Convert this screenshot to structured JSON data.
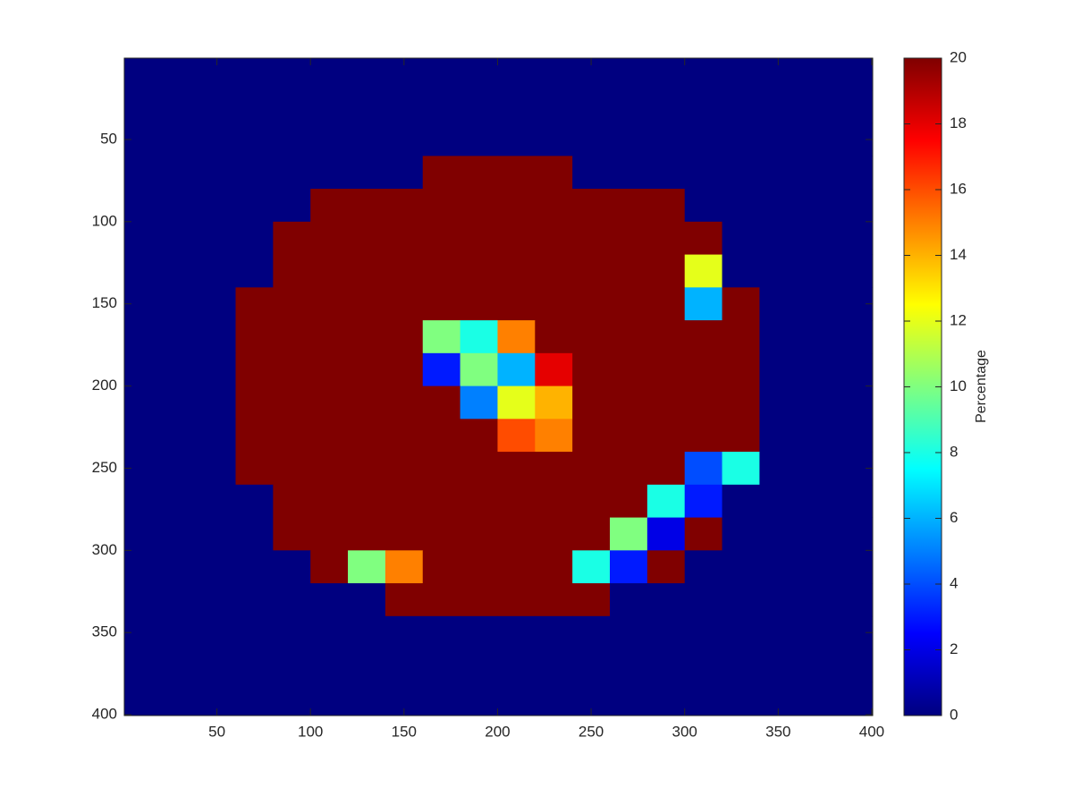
{
  "chart_data": {
    "type": "heatmap",
    "colormap": "jet",
    "ydir": "reverse",
    "x": [
      10,
      30,
      50,
      70,
      90,
      110,
      130,
      150,
      170,
      190,
      210,
      230,
      250,
      270,
      290,
      310,
      330,
      350,
      370,
      390
    ],
    "y": [
      10,
      30,
      50,
      70,
      90,
      110,
      130,
      150,
      170,
      190,
      210,
      230,
      250,
      270,
      290,
      310,
      330,
      350,
      370,
      390
    ],
    "z": [
      [
        0,
        0,
        0,
        0,
        0,
        0,
        0,
        0,
        0,
        0,
        0,
        0,
        0,
        0,
        0,
        0,
        0,
        0,
        0,
        0
      ],
      [
        0,
        0,
        0,
        0,
        0,
        0,
        0,
        0,
        0,
        0,
        0,
        0,
        0,
        0,
        0,
        0,
        0,
        0,
        0,
        0
      ],
      [
        0,
        0,
        0,
        0,
        0,
        0,
        0,
        0,
        0,
        0,
        0,
        0,
        0,
        0,
        0,
        0,
        0,
        0,
        0,
        0
      ],
      [
        0,
        0,
        0,
        0,
        0,
        0,
        0,
        0,
        20,
        20,
        20,
        20,
        0,
        0,
        0,
        0,
        0,
        0,
        0,
        0
      ],
      [
        0,
        0,
        0,
        0,
        0,
        20,
        20,
        20,
        20,
        20,
        20,
        20,
        20,
        20,
        20,
        0,
        0,
        0,
        0,
        0
      ],
      [
        0,
        0,
        0,
        0,
        20,
        20,
        20,
        20,
        20,
        20,
        20,
        20,
        20,
        20,
        20,
        20,
        0,
        0,
        0,
        0
      ],
      [
        0,
        0,
        0,
        0,
        20,
        20,
        20,
        20,
        20,
        20,
        20,
        20,
        20,
        20,
        20,
        12,
        0,
        0,
        0,
        0
      ],
      [
        0,
        0,
        0,
        20,
        20,
        20,
        20,
        20,
        20,
        20,
        20,
        20,
        20,
        20,
        20,
        6,
        20,
        0,
        0,
        0
      ],
      [
        0,
        0,
        0,
        20,
        20,
        20,
        20,
        20,
        10,
        8,
        15,
        20,
        20,
        20,
        20,
        20,
        20,
        0,
        0,
        0
      ],
      [
        0,
        0,
        0,
        20,
        20,
        20,
        20,
        20,
        3,
        10,
        6,
        18,
        20,
        20,
        20,
        20,
        20,
        0,
        0,
        0
      ],
      [
        0,
        0,
        0,
        20,
        20,
        20,
        20,
        20,
        20,
        5,
        12,
        14,
        20,
        20,
        20,
        20,
        20,
        0,
        0,
        0
      ],
      [
        0,
        0,
        0,
        20,
        20,
        20,
        20,
        20,
        20,
        20,
        16,
        15,
        20,
        20,
        20,
        20,
        20,
        0,
        0,
        0
      ],
      [
        0,
        0,
        0,
        20,
        20,
        20,
        20,
        20,
        20,
        20,
        20,
        20,
        20,
        20,
        20,
        4,
        8,
        0,
        0,
        0
      ],
      [
        0,
        0,
        0,
        0,
        20,
        20,
        20,
        20,
        20,
        20,
        20,
        20,
        20,
        20,
        8,
        3,
        0,
        0,
        0,
        0
      ],
      [
        0,
        0,
        0,
        0,
        20,
        20,
        20,
        20,
        20,
        20,
        20,
        20,
        20,
        10,
        2,
        20,
        0,
        0,
        0,
        0
      ],
      [
        0,
        0,
        0,
        0,
        0,
        20,
        10,
        15,
        20,
        20,
        20,
        20,
        8,
        3,
        20,
        0,
        0,
        0,
        0,
        0
      ],
      [
        0,
        0,
        0,
        0,
        0,
        0,
        0,
        20,
        20,
        20,
        20,
        20,
        20,
        0,
        0,
        0,
        0,
        0,
        0,
        0
      ],
      [
        0,
        0,
        0,
        0,
        0,
        0,
        0,
        0,
        0,
        0,
        0,
        0,
        0,
        0,
        0,
        0,
        0,
        0,
        0,
        0
      ],
      [
        0,
        0,
        0,
        0,
        0,
        0,
        0,
        0,
        0,
        0,
        0,
        0,
        0,
        0,
        0,
        0,
        0,
        0,
        0,
        0
      ],
      [
        0,
        0,
        0,
        0,
        0,
        0,
        0,
        0,
        0,
        0,
        0,
        0,
        0,
        0,
        0,
        0,
        0,
        0,
        0,
        0
      ]
    ],
    "xlim": [
      0.5,
      400.5
    ],
    "ylim": [
      0.5,
      400.5
    ],
    "xticks": [
      50,
      100,
      150,
      200,
      250,
      300,
      350,
      400
    ],
    "yticks": [
      50,
      100,
      150,
      200,
      250,
      300,
      350,
      400
    ],
    "clim": [
      0,
      20
    ],
    "cticks": [
      0,
      2,
      4,
      6,
      8,
      10,
      12,
      14,
      16,
      18,
      20
    ],
    "colorbar_label": "Percentage"
  }
}
